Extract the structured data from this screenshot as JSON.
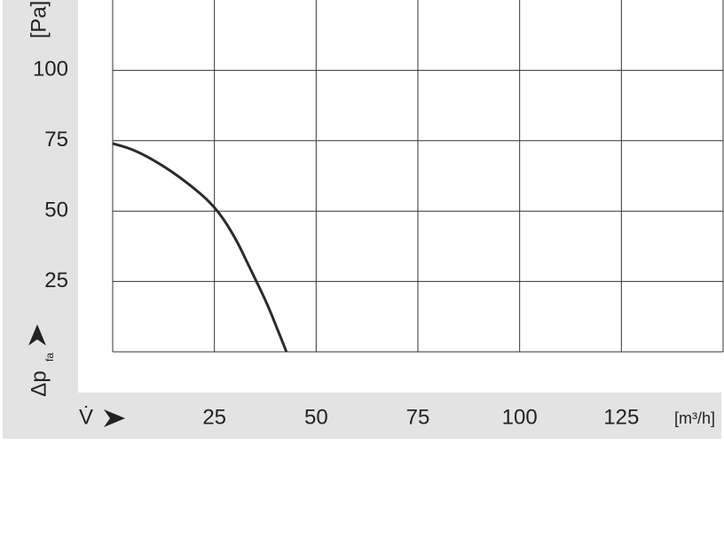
{
  "chart_data": {
    "type": "line",
    "x_label": "V̇",
    "x_unit": "[m³/h]",
    "y_label": "Δp",
    "y_label_sub": "fa",
    "y_unit": "[Pa]",
    "xlim": [
      0,
      150
    ],
    "xticks": [
      25,
      50,
      75,
      100,
      125
    ],
    "ylim": [
      0,
      125
    ],
    "yticks": [
      25,
      50,
      75,
      100
    ],
    "grid": true,
    "series": [
      {
        "color": "#2b2b2b",
        "x": [
          0,
          5,
          11.5,
          18,
          25,
          30,
          33.3,
          37.7,
          40.5,
          42.7
        ],
        "values": [
          74,
          72,
          67,
          60.5,
          52,
          41,
          31,
          18,
          8,
          0
        ]
      }
    ]
  }
}
